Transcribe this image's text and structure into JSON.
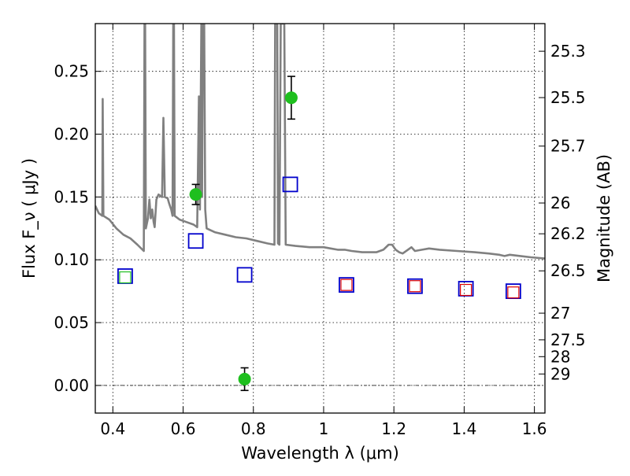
{
  "chart_data": {
    "type": "scatter",
    "xlabel": "Wavelength  λ (μm)",
    "ylabel": "Flux  F_ν  ( μJy )",
    "ylabel_right": "Magnitude (AB)",
    "xlim": [
      0.35,
      1.63
    ],
    "ylim": [
      -0.022,
      0.288
    ],
    "grid": true,
    "x_ticks": [
      {
        "value": 0.4,
        "label": "0.4"
      },
      {
        "value": 0.6,
        "label": "0.6"
      },
      {
        "value": 0.8,
        "label": "0.8"
      },
      {
        "value": 1.0,
        "label": "1"
      },
      {
        "value": 1.2,
        "label": "1.2"
      },
      {
        "value": 1.4,
        "label": "1.4"
      },
      {
        "value": 1.6,
        "label": "1.6"
      }
    ],
    "y_ticks": [
      {
        "value": 0.0,
        "label": "0.00"
      },
      {
        "value": 0.05,
        "label": "0.05"
      },
      {
        "value": 0.1,
        "label": "0.10"
      },
      {
        "value": 0.15,
        "label": "0.15"
      },
      {
        "value": 0.2,
        "label": "0.20"
      },
      {
        "value": 0.25,
        "label": "0.25"
      }
    ],
    "right_ticks": [
      {
        "flux": 0.266,
        "label": "25.3"
      },
      {
        "flux": 0.2291,
        "label": "25.5"
      },
      {
        "flux": 0.1905,
        "label": "25.7"
      },
      {
        "flux": 0.1452,
        "label": "26"
      },
      {
        "flux": 0.1207,
        "label": "26.2"
      },
      {
        "flux": 0.0912,
        "label": "26.5"
      },
      {
        "flux": 0.0575,
        "label": "27"
      },
      {
        "flux": 0.0363,
        "label": "27.5"
      },
      {
        "flux": 0.0229,
        "label": "28"
      },
      {
        "flux": 0.0091,
        "label": "29"
      }
    ],
    "series": [
      {
        "marker": "circle",
        "color": "#1fbf1f",
        "points": [
          {
            "x": 0.636,
            "y": 0.152,
            "err": 0.008
          },
          {
            "x": 0.775,
            "y": 0.005,
            "err": 0.009
          },
          {
            "x": 0.908,
            "y": 0.229,
            "err": 0.017
          }
        ]
      },
      {
        "marker": "open-square",
        "color": "#0000cc",
        "points": [
          {
            "x": 0.435,
            "y": 0.087
          },
          {
            "x": 0.636,
            "y": 0.115
          },
          {
            "x": 0.775,
            "y": 0.088
          },
          {
            "x": 0.905,
            "y": 0.16
          },
          {
            "x": 1.065,
            "y": 0.08
          },
          {
            "x": 1.26,
            "y": 0.079
          },
          {
            "x": 1.405,
            "y": 0.077
          },
          {
            "x": 1.54,
            "y": 0.075
          }
        ]
      },
      {
        "marker": "open-square",
        "color": "#dd0000",
        "points": [
          {
            "x": 1.065,
            "y": 0.08
          },
          {
            "x": 1.26,
            "y": 0.079
          },
          {
            "x": 1.405,
            "y": 0.076
          },
          {
            "x": 1.54,
            "y": 0.074
          }
        ]
      },
      {
        "marker": "open-square",
        "color": "#1fbf1f",
        "points": [
          {
            "x": 0.435,
            "y": 0.086
          }
        ]
      },
      {
        "marker": "line",
        "color": "#808080",
        "points": [
          [
            0.35,
            0.143
          ],
          [
            0.36,
            0.137
          ],
          [
            0.37,
            0.135
          ],
          [
            0.371,
            0.228
          ],
          [
            0.373,
            0.135
          ],
          [
            0.39,
            0.132
          ],
          [
            0.41,
            0.125
          ],
          [
            0.43,
            0.12
          ],
          [
            0.45,
            0.117
          ],
          [
            0.47,
            0.112
          ],
          [
            0.488,
            0.107
          ],
          [
            0.49,
            0.288
          ],
          [
            0.492,
            0.288
          ],
          [
            0.494,
            0.125
          ],
          [
            0.5,
            0.133
          ],
          [
            0.504,
            0.148
          ],
          [
            0.508,
            0.133
          ],
          [
            0.512,
            0.14
          ],
          [
            0.516,
            0.13
          ],
          [
            0.519,
            0.126
          ],
          [
            0.524,
            0.148
          ],
          [
            0.53,
            0.152
          ],
          [
            0.54,
            0.15
          ],
          [
            0.544,
            0.213
          ],
          [
            0.548,
            0.15
          ],
          [
            0.556,
            0.149
          ],
          [
            0.56,
            0.145
          ],
          [
            0.566,
            0.14
          ],
          [
            0.57,
            0.135
          ],
          [
            0.572,
            0.288
          ],
          [
            0.574,
            0.288
          ],
          [
            0.576,
            0.135
          ],
          [
            0.59,
            0.132
          ],
          [
            0.61,
            0.13
          ],
          [
            0.63,
            0.128
          ],
          [
            0.64,
            0.126
          ],
          [
            0.645,
            0.23
          ],
          [
            0.648,
            0.14
          ],
          [
            0.652,
            0.288
          ],
          [
            0.654,
            0.15
          ],
          [
            0.656,
            0.288
          ],
          [
            0.66,
            0.288
          ],
          [
            0.663,
            0.14
          ],
          [
            0.667,
            0.125
          ],
          [
            0.69,
            0.122
          ],
          [
            0.72,
            0.12
          ],
          [
            0.75,
            0.118
          ],
          [
            0.78,
            0.117
          ],
          [
            0.81,
            0.115
          ],
          [
            0.84,
            0.113
          ],
          [
            0.86,
            0.112
          ],
          [
            0.862,
            0.288
          ],
          [
            0.868,
            0.288
          ],
          [
            0.87,
            0.113
          ],
          [
            0.874,
            0.112
          ],
          [
            0.878,
            0.288
          ],
          [
            0.884,
            0.288
          ],
          [
            0.888,
            0.288
          ],
          [
            0.892,
            0.112
          ],
          [
            0.92,
            0.111
          ],
          [
            0.96,
            0.11
          ],
          [
            1.0,
            0.11
          ],
          [
            1.02,
            0.109
          ],
          [
            1.04,
            0.108
          ],
          [
            1.06,
            0.108
          ],
          [
            1.08,
            0.107
          ],
          [
            1.11,
            0.106
          ],
          [
            1.15,
            0.106
          ],
          [
            1.17,
            0.108
          ],
          [
            1.185,
            0.112
          ],
          [
            1.195,
            0.112
          ],
          [
            1.205,
            0.108
          ],
          [
            1.215,
            0.106
          ],
          [
            1.225,
            0.105
          ],
          [
            1.24,
            0.108
          ],
          [
            1.25,
            0.11
          ],
          [
            1.26,
            0.107
          ],
          [
            1.28,
            0.108
          ],
          [
            1.3,
            0.109
          ],
          [
            1.33,
            0.108
          ],
          [
            1.38,
            0.107
          ],
          [
            1.43,
            0.106
          ],
          [
            1.47,
            0.105
          ],
          [
            1.5,
            0.104
          ],
          [
            1.515,
            0.103
          ],
          [
            1.53,
            0.104
          ],
          [
            1.56,
            0.103
          ],
          [
            1.59,
            0.102
          ],
          [
            1.63,
            0.101
          ]
        ]
      }
    ]
  }
}
